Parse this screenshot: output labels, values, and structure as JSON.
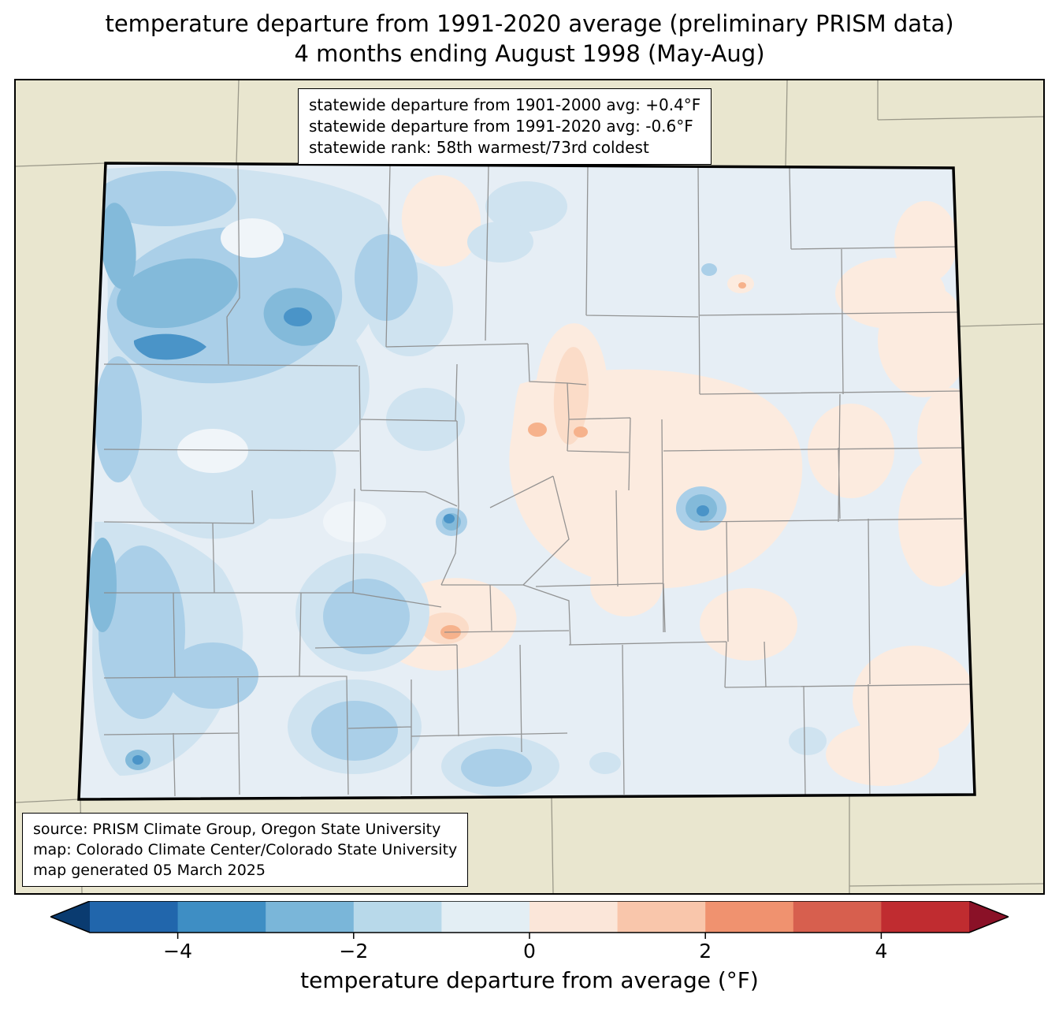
{
  "title": {
    "line1": "temperature departure from 1991-2020 average (preliminary PRISM data)",
    "line2": "4 months ending August 1998 (May-Aug)"
  },
  "stats_box": {
    "line1": "statewide departure from 1901-2000 avg: +0.4°F",
    "line2": "statewide departure from 1991-2020 avg: -0.6°F",
    "line3": "statewide rank: 58th warmest/73rd coldest"
  },
  "source_box": {
    "line1": "source: PRISM Climate Group, Oregon State University",
    "line2": "map: Colorado Climate Center/Colorado State University",
    "line3": "map generated 05 March 2025"
  },
  "colorbar": {
    "label": "temperature departure from average (°F)",
    "range": [
      -5,
      5
    ],
    "tick_values": [
      -4,
      -2,
      0,
      2,
      4
    ],
    "tick_labels": [
      "−4",
      "−2",
      "0",
      "2",
      "4"
    ],
    "segments": [
      {
        "from": -5,
        "to": -4,
        "color": "#2166ac"
      },
      {
        "from": -4,
        "to": -3,
        "color": "#3e8ec4"
      },
      {
        "from": -3,
        "to": -2,
        "color": "#7ab6d9"
      },
      {
        "from": -2,
        "to": -1,
        "color": "#b8d9ea"
      },
      {
        "from": -1,
        "to": 0,
        "color": "#e3eef4"
      },
      {
        "from": 0,
        "to": 1,
        "color": "#fbe6d9"
      },
      {
        "from": 1,
        "to": 2,
        "color": "#f9c6ab"
      },
      {
        "from": 2,
        "to": 3,
        "color": "#f0926f"
      },
      {
        "from": 3,
        "to": 4,
        "color": "#d75f4e"
      },
      {
        "from": 4,
        "to": 5,
        "color": "#c02c30"
      }
    ],
    "left_arrow_color": "#0a3b70",
    "right_arrow_color": "#8a1127",
    "outline_color": "#000000"
  },
  "map_colors": {
    "background_beige": "#e9e6cf",
    "state_base": "#e6eef5",
    "blue_pale": "#cfe3f0",
    "blue_light": "#aacfe8",
    "blue_mid": "#83bada",
    "blue_deep": "#4a94c8",
    "pink_pale": "#fcebdf",
    "pink_light": "#fbdcc8",
    "salmon": "#f6b28c",
    "highlight": "#f0f5f9",
    "county_line": "#8a8a8a",
    "neighbor_line": "#9b998a",
    "state_border": "#000000"
  }
}
